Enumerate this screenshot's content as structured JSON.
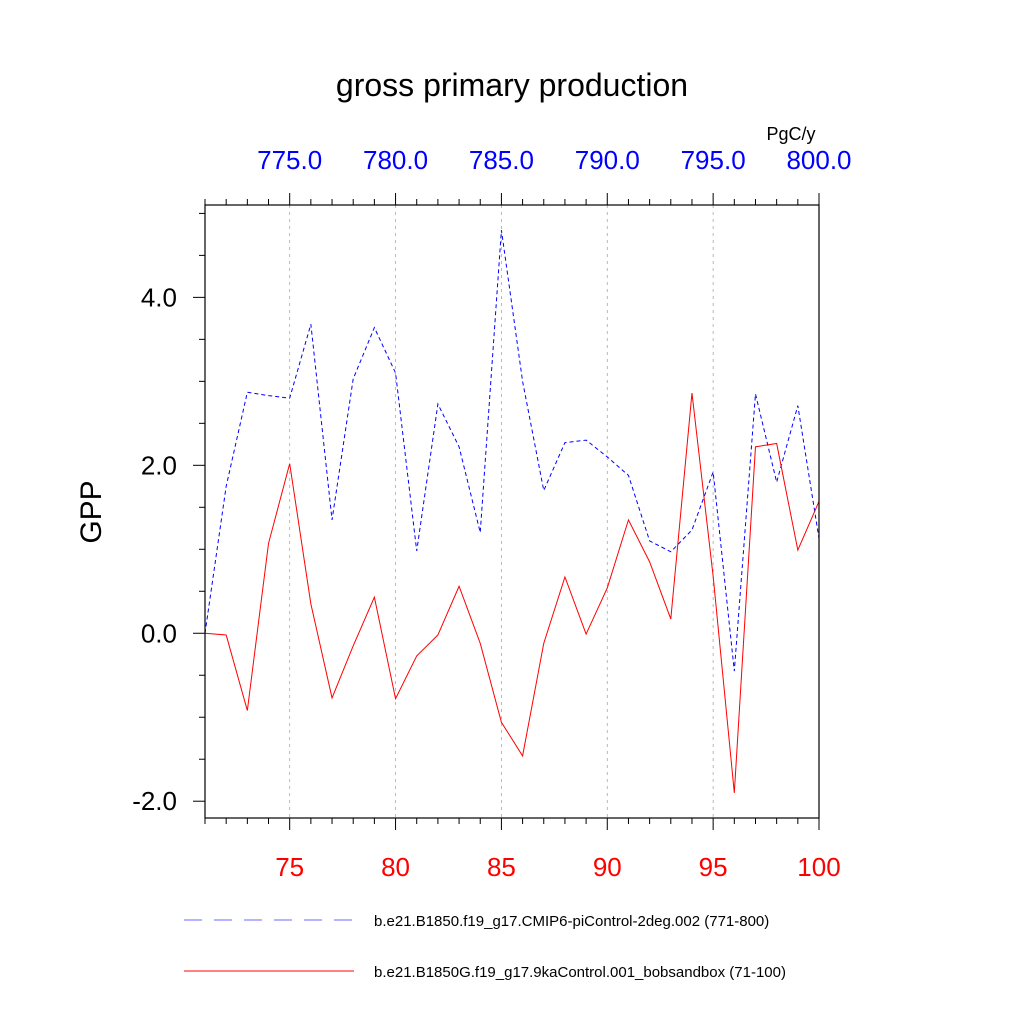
{
  "chart_data": {
    "type": "line",
    "title": "gross primary production",
    "units": "PgC/y",
    "ylabel": "GPP",
    "ylim": [
      -2.2,
      5.1
    ],
    "y_ticks": [
      -2.0,
      0.0,
      2.0,
      4.0
    ],
    "y_tick_labels": [
      "-2.0",
      "0.0",
      "2.0",
      "4.0"
    ],
    "x_bottom": {
      "range": [
        71,
        100
      ],
      "ticks": [
        75,
        80,
        85,
        90,
        95,
        100
      ],
      "labels": [
        "75",
        "80",
        "85",
        "90",
        "95",
        "100"
      ],
      "color": "#ff0000"
    },
    "x_top": {
      "range": [
        771,
        800
      ],
      "ticks": [
        775,
        780,
        785,
        790,
        795,
        800
      ],
      "labels": [
        "775.0",
        "780.0",
        "785.0",
        "790.0",
        "795.0",
        "800.0"
      ],
      "color": "#0000ff"
    },
    "grid": "vertical dashed at major ticks",
    "legend": "bottom",
    "series": [
      {
        "name": "b.e21.B1850.f19_g17.CMIP6-piControl-2deg.002 (771-800)",
        "color": "#0000ff",
        "style": "dashed",
        "axis": "top",
        "x": [
          771,
          772,
          773,
          774,
          775,
          776,
          777,
          778,
          779,
          780,
          781,
          782,
          783,
          784,
          785,
          786,
          787,
          788,
          789,
          790,
          791,
          792,
          793,
          794,
          795,
          796,
          797,
          798,
          799,
          800
        ],
        "values": [
          0.0,
          1.75,
          2.87,
          2.83,
          2.8,
          3.68,
          1.35,
          3.03,
          3.64,
          3.1,
          0.98,
          2.73,
          2.22,
          1.2,
          4.8,
          3.0,
          1.7,
          2.27,
          2.3,
          2.1,
          1.88,
          1.1,
          0.97,
          1.23,
          1.92,
          -0.45,
          2.85,
          1.8,
          2.71,
          1.13
        ]
      },
      {
        "name": "b.e21.B1850G.f19_g17.9kaControl.001_bobsandbox (71-100)",
        "color": "#ff0000",
        "style": "solid",
        "axis": "bottom",
        "x": [
          71,
          72,
          73,
          74,
          75,
          76,
          77,
          78,
          79,
          80,
          81,
          82,
          83,
          84,
          85,
          86,
          87,
          88,
          89,
          90,
          91,
          92,
          93,
          94,
          95,
          96,
          97,
          98,
          99,
          100
        ],
        "values": [
          0.0,
          -0.02,
          -0.92,
          1.07,
          2.02,
          0.35,
          -0.77,
          -0.15,
          0.43,
          -0.78,
          -0.27,
          -0.02,
          0.56,
          -0.12,
          -1.06,
          -1.46,
          -0.12,
          0.67,
          -0.01,
          0.54,
          1.35,
          0.85,
          0.17,
          2.86,
          0.68,
          -1.9,
          2.22,
          2.26,
          0.99,
          1.57
        ]
      }
    ]
  }
}
